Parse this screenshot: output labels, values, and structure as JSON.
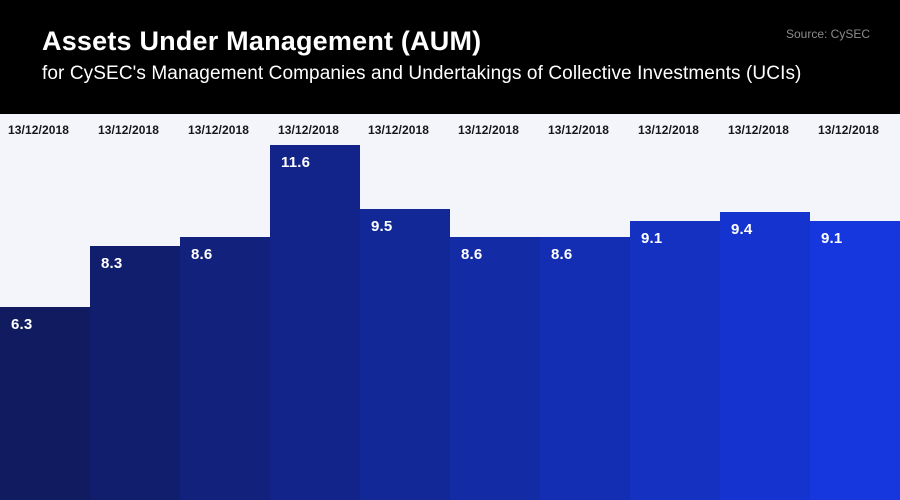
{
  "header": {
    "title": "Assets Under Management (AUM)",
    "subtitle": "for CySEC's Management Companies and Undertakings of Collective Investments (UCIs)",
    "source": "Source: CySEC"
  },
  "colors": {
    "header_bg": "#000000",
    "header_text": "#ffffff",
    "source_text": "#8c8c8c",
    "chart_bg": "#f4f5fa",
    "date_label": "#15171c",
    "value_label": "#ffffff"
  },
  "chart_data": {
    "type": "bar",
    "title": "Assets Under Management (AUM)",
    "subtitle": "for CySEC's Management Companies and Undertakings of Collective Investments (UCIs)",
    "source": "Source: CySEC",
    "categories": [
      "13/12/2018",
      "13/12/2018",
      "13/12/2018",
      "13/12/2018",
      "13/12/2018",
      "13/12/2018",
      "13/12/2018",
      "13/12/2018",
      "13/12/2018",
      "13/12/2018"
    ],
    "values": [
      6.3,
      8.3,
      8.6,
      11.6,
      9.5,
      8.6,
      8.6,
      9.1,
      9.4,
      9.1
    ],
    "bar_colors": [
      "#101b60",
      "#111e6e",
      "#12217c",
      "#122489",
      "#132897",
      "#132ba5",
      "#142eb3",
      "#1431c1",
      "#1534cf",
      "#1637dd"
    ],
    "xlabel": "",
    "ylabel": "",
    "ylim": [
      0,
      12.6
    ],
    "grid": false,
    "legend_position": "none",
    "value_labels_shown": true,
    "category_labels_position": "top"
  }
}
